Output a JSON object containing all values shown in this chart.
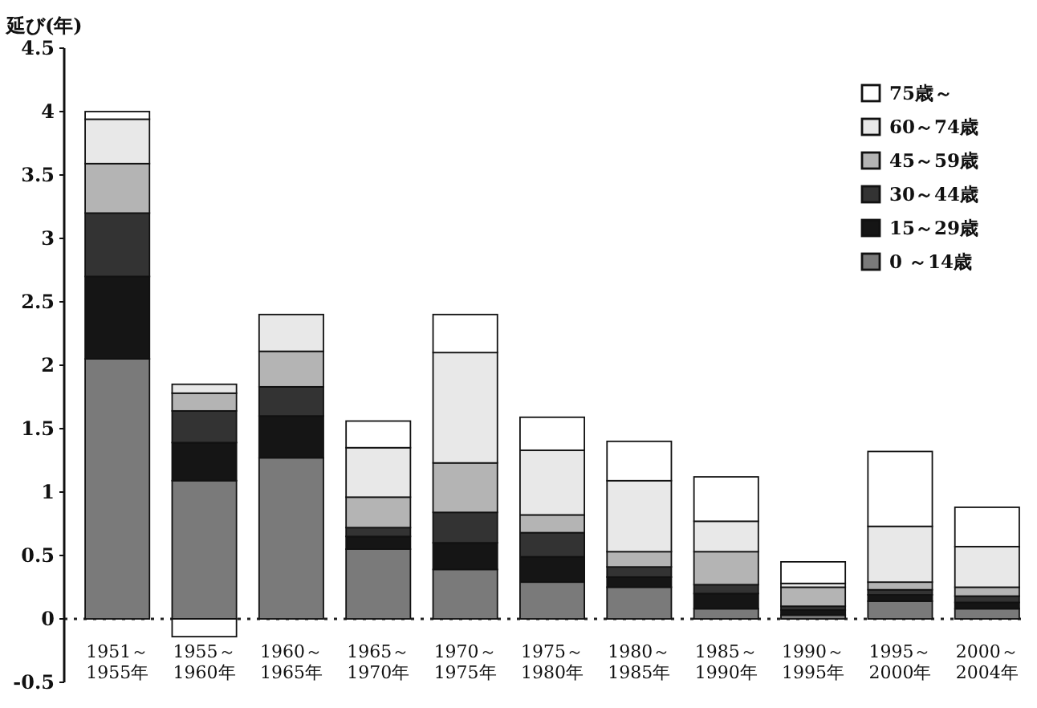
{
  "chart_data": {
    "type": "bar",
    "stacked": true,
    "ylabel": "延び(年)",
    "categories": [
      "1951～\n1955年",
      "1955～\n1960年",
      "1960～\n1965年",
      "1965～\n1970年",
      "1970～\n1975年",
      "1975～\n1980年",
      "1980～\n1985年",
      "1985～\n1990年",
      "1990～\n1995年",
      "1995～\n2000年",
      "2000～\n2004年"
    ],
    "series": [
      {
        "name": "0 ～14歳",
        "color": "#7a7a7a",
        "values": [
          2.05,
          1.09,
          1.27,
          0.55,
          0.39,
          0.29,
          0.25,
          0.08,
          0.03,
          0.14,
          0.08
        ]
      },
      {
        "name": "15～29歳",
        "color": "#151515",
        "values": [
          0.65,
          0.3,
          0.33,
          0.1,
          0.21,
          0.2,
          0.08,
          0.12,
          0.04,
          0.05,
          0.05
        ]
      },
      {
        "name": "30～44歳",
        "color": "#333333",
        "values": [
          0.5,
          0.25,
          0.23,
          0.07,
          0.24,
          0.19,
          0.08,
          0.07,
          0.03,
          0.04,
          0.05
        ]
      },
      {
        "name": "45～59歳",
        "color": "#b4b4b4",
        "values": [
          0.39,
          0.14,
          0.28,
          0.24,
          0.39,
          0.14,
          0.12,
          0.26,
          0.15,
          0.06,
          0.07
        ]
      },
      {
        "name": "60～74歳",
        "color": "#e8e8e8",
        "values": [
          0.35,
          0.07,
          0.29,
          0.39,
          0.87,
          0.51,
          0.56,
          0.24,
          0.03,
          0.44,
          0.32
        ]
      },
      {
        "name": "75歳～",
        "color": "#ffffff",
        "values": [
          0.06,
          -0.14,
          0,
          0.21,
          0.3,
          0.26,
          0.31,
          0.35,
          0.17,
          0.59,
          0.31
        ]
      }
    ],
    "ylim": [
      -0.5,
      4.5
    ],
    "yticks": [
      -0.5,
      0,
      0.5,
      1,
      1.5,
      2,
      2.5,
      3,
      3.5,
      4,
      4.5
    ],
    "ref_lines": [
      {
        "axis": "y",
        "value": 0,
        "line_style": "dotted"
      }
    ],
    "legend": "top right",
    "grid": false
  }
}
